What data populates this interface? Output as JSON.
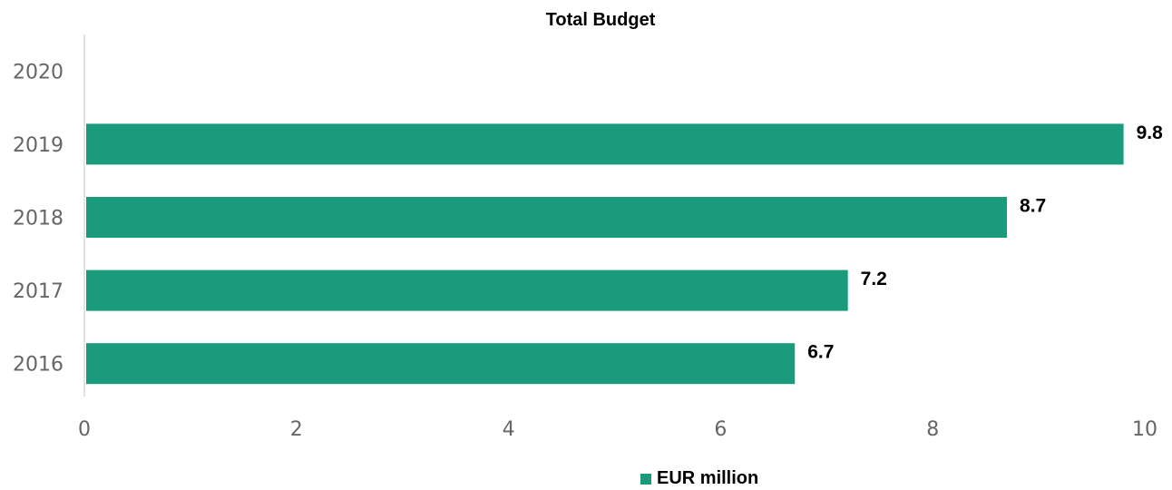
{
  "chart_data": {
    "type": "bar",
    "orientation": "horizontal",
    "title": "Total Budget",
    "categories": [
      "2020",
      "2019",
      "2018",
      "2017",
      "2016"
    ],
    "series": [
      {
        "name": "EUR million",
        "values": [
          null,
          9.8,
          8.7,
          7.2,
          6.7
        ],
        "data_labels": [
          "",
          "9.8",
          "8.7",
          "7.2",
          "6.7"
        ]
      }
    ],
    "xlim": [
      0,
      10
    ],
    "x_ticks": [
      0,
      2,
      4,
      6,
      8,
      10
    ],
    "xlabel": "",
    "ylabel": "",
    "grid": false,
    "legend_position": "bottom",
    "colors": {
      "bar": "#1a9c7c",
      "axis": "#d9d9d9",
      "text": "#666666"
    }
  }
}
